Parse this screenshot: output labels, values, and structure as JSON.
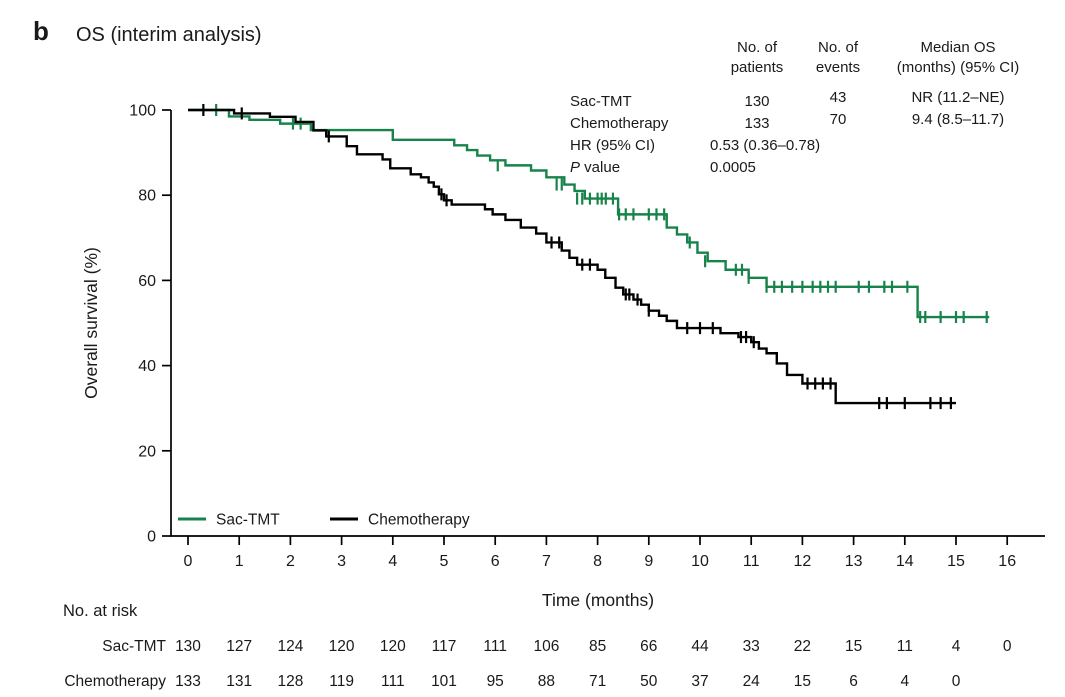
{
  "panel": {
    "label": "b",
    "title": "OS (interim analysis)"
  },
  "colors": {
    "sac_green": "#17834a",
    "chemo_black": "#000000",
    "text": "#1a1a1a",
    "axis": "#000000"
  },
  "stats_table": {
    "col_headers": [
      {
        "line1": "No. of",
        "line2": "patients"
      },
      {
        "line1": "No. of",
        "line2": "events"
      },
      {
        "line1": "Median OS",
        "line2": "(months) (95% CI)"
      }
    ],
    "rows": [
      {
        "label": "Sac-TMT",
        "patients": "130",
        "events": "43",
        "median": "NR (11.2–NE)"
      },
      {
        "label": "Chemotherapy",
        "patients": "133",
        "events": "70",
        "median": "9.4 (8.5–11.7)"
      }
    ],
    "hr_label": "HR (95% CI)",
    "hr_value": "0.53 (0.36–0.78)",
    "p_label_italic": "P",
    "p_label_rest": " value",
    "p_value": "0.0005"
  },
  "chart_data": {
    "type": "line",
    "subtype": "kaplan-meier-step",
    "title": "OS (interim analysis)",
    "xlabel": "Time (months)",
    "ylabel": "Overall survival (%)",
    "xlim": [
      0,
      16
    ],
    "ylim": [
      0,
      100
    ],
    "xticks": [
      0,
      1,
      2,
      3,
      4,
      5,
      6,
      7,
      8,
      9,
      10,
      11,
      12,
      13,
      14,
      15,
      16
    ],
    "yticks": [
      0,
      20,
      40,
      60,
      80,
      100
    ],
    "grid": false,
    "legend_position": "inside-bottom-left",
    "series": [
      {
        "name": "Sac-TMT",
        "color": "#17834a",
        "steps": [
          [
            0,
            100
          ],
          [
            0.8,
            98.5
          ],
          [
            1.2,
            97.7
          ],
          [
            1.8,
            96.8
          ],
          [
            2.4,
            95.3
          ],
          [
            4.0,
            93.0
          ],
          [
            5.2,
            91.7
          ],
          [
            5.45,
            90.6
          ],
          [
            5.65,
            89.3
          ],
          [
            5.9,
            88.2
          ],
          [
            6.2,
            87.0
          ],
          [
            6.7,
            85.8
          ],
          [
            7.0,
            84.2
          ],
          [
            7.35,
            82.5
          ],
          [
            7.55,
            81.0
          ],
          [
            7.75,
            79.2
          ],
          [
            8.4,
            75.5
          ],
          [
            9.35,
            72.4
          ],
          [
            9.55,
            70.8
          ],
          [
            9.75,
            68.9
          ],
          [
            9.95,
            66.5
          ],
          [
            10.15,
            64.5
          ],
          [
            10.5,
            62.5
          ],
          [
            10.95,
            60.6
          ],
          [
            11.3,
            58.5
          ],
          [
            14.25,
            51.4
          ]
        ],
        "end": 15.65,
        "censors": [
          [
            0.55,
            100
          ],
          [
            2.05,
            96.8
          ],
          [
            2.2,
            96.8
          ],
          [
            6.05,
            87.0
          ],
          [
            7.2,
            82.5
          ],
          [
            7.3,
            82.5
          ],
          [
            7.6,
            79.2
          ],
          [
            7.7,
            79.2
          ],
          [
            7.85,
            79.2
          ],
          [
            8.0,
            79.2
          ],
          [
            8.08,
            79.2
          ],
          [
            8.16,
            79.2
          ],
          [
            8.3,
            79.2
          ],
          [
            8.42,
            75.5
          ],
          [
            8.55,
            75.5
          ],
          [
            8.7,
            75.5
          ],
          [
            9.0,
            75.5
          ],
          [
            9.15,
            75.5
          ],
          [
            9.3,
            75.5
          ],
          [
            9.8,
            68.9
          ],
          [
            10.1,
            64.5
          ],
          [
            10.7,
            62.5
          ],
          [
            10.82,
            62.5
          ],
          [
            10.95,
            60.6
          ],
          [
            11.3,
            58.5
          ],
          [
            11.45,
            58.5
          ],
          [
            11.6,
            58.5
          ],
          [
            11.8,
            58.5
          ],
          [
            12.0,
            58.5
          ],
          [
            12.2,
            58.5
          ],
          [
            12.35,
            58.5
          ],
          [
            12.5,
            58.5
          ],
          [
            12.65,
            58.5
          ],
          [
            13.1,
            58.5
          ],
          [
            13.3,
            58.5
          ],
          [
            13.6,
            58.5
          ],
          [
            13.75,
            58.5
          ],
          [
            14.05,
            58.5
          ],
          [
            14.3,
            51.4
          ],
          [
            14.4,
            51.4
          ],
          [
            14.7,
            51.4
          ],
          [
            15.0,
            51.4
          ],
          [
            15.15,
            51.4
          ],
          [
            15.6,
            51.4
          ]
        ]
      },
      {
        "name": "Chemotherapy",
        "color": "#000000",
        "steps": [
          [
            0,
            100
          ],
          [
            0.9,
            99.2
          ],
          [
            1.6,
            98.4
          ],
          [
            2.1,
            97.2
          ],
          [
            2.45,
            95.2
          ],
          [
            2.7,
            93.8
          ],
          [
            3.1,
            91.5
          ],
          [
            3.3,
            89.6
          ],
          [
            3.8,
            88.4
          ],
          [
            3.95,
            86.3
          ],
          [
            4.35,
            84.9
          ],
          [
            4.55,
            84.2
          ],
          [
            4.7,
            83.0
          ],
          [
            4.8,
            82.0
          ],
          [
            4.9,
            80.2
          ],
          [
            5.0,
            78.8
          ],
          [
            5.15,
            77.8
          ],
          [
            5.8,
            76.7
          ],
          [
            5.95,
            75.5
          ],
          [
            6.2,
            74.2
          ],
          [
            6.5,
            72.4
          ],
          [
            6.8,
            71.0
          ],
          [
            7.0,
            68.9
          ],
          [
            7.3,
            67.0
          ],
          [
            7.45,
            65.3
          ],
          [
            7.6,
            63.7
          ],
          [
            8.0,
            62.5
          ],
          [
            8.15,
            60.6
          ],
          [
            8.35,
            58.3
          ],
          [
            8.5,
            56.7
          ],
          [
            8.7,
            55.5
          ],
          [
            8.85,
            54.3
          ],
          [
            9.0,
            52.9
          ],
          [
            9.2,
            51.7
          ],
          [
            9.35,
            50.5
          ],
          [
            9.55,
            48.8
          ],
          [
            10.4,
            47.6
          ],
          [
            10.75,
            46.7
          ],
          [
            11.0,
            45.5
          ],
          [
            11.15,
            44.0
          ],
          [
            11.3,
            42.9
          ],
          [
            11.5,
            40.5
          ],
          [
            11.7,
            37.8
          ],
          [
            12.0,
            35.8
          ],
          [
            12.65,
            31.2
          ]
        ],
        "end": 15.0,
        "censors": [
          [
            0.3,
            100
          ],
          [
            1.05,
            99.2
          ],
          [
            2.75,
            93.8
          ],
          [
            4.95,
            80.2
          ],
          [
            5.05,
            78.8
          ],
          [
            7.1,
            68.9
          ],
          [
            7.25,
            68.9
          ],
          [
            7.7,
            63.7
          ],
          [
            7.85,
            63.7
          ],
          [
            8.55,
            56.7
          ],
          [
            8.62,
            56.7
          ],
          [
            8.78,
            55.5
          ],
          [
            9.0,
            52.9
          ],
          [
            9.75,
            48.8
          ],
          [
            10.0,
            48.8
          ],
          [
            10.25,
            48.8
          ],
          [
            10.8,
            46.7
          ],
          [
            10.9,
            46.7
          ],
          [
            11.05,
            45.5
          ],
          [
            12.1,
            35.8
          ],
          [
            12.25,
            35.8
          ],
          [
            12.4,
            35.8
          ],
          [
            12.55,
            35.8
          ],
          [
            13.5,
            31.2
          ],
          [
            13.65,
            31.2
          ],
          [
            14.0,
            31.2
          ],
          [
            14.5,
            31.2
          ],
          [
            14.7,
            31.2
          ],
          [
            14.9,
            31.2
          ]
        ]
      }
    ]
  },
  "risk_table": {
    "title": "No. at risk",
    "rows": [
      {
        "label": "Sac-TMT",
        "color": "#17834a",
        "values": [
          130,
          127,
          124,
          120,
          120,
          117,
          111,
          106,
          85,
          66,
          44,
          33,
          22,
          15,
          11,
          4,
          0
        ]
      },
      {
        "label": "Chemotherapy",
        "color": "#000000",
        "values": [
          133,
          131,
          128,
          119,
          111,
          101,
          95,
          88,
          71,
          50,
          37,
          24,
          15,
          6,
          4,
          0
        ]
      }
    ]
  }
}
